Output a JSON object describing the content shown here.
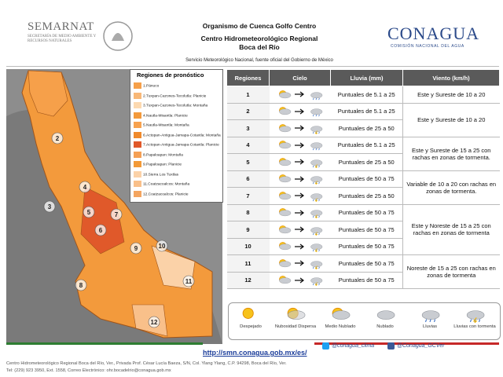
{
  "header": {
    "semarnat": "SEMARNAT",
    "semarnat_sub": "SECRETARÍA DE MEDIO AMBIENTE Y RECURSOS NATURALES",
    "org_lines": [
      "Organismo de Cuenca Golfo Centro",
      "Centro Hidrometeorológico Regional",
      "Boca del Río"
    ],
    "smn": "Servicio Meteorológico Nacional, fuente oficial del Gobierno de México",
    "conagua": "CONAGUA",
    "conagua_sub": "COMISIÓN NACIONAL DEL AGUA"
  },
  "map": {
    "legend_title": "Regiones de pronóstico",
    "legend": [
      {
        "label": "1.Pánuco",
        "color": "#f6a04a"
      },
      {
        "label": "2.Tuxpan-Cazones-Tecolutla: Planicie",
        "color": "#f8b878"
      },
      {
        "label": "3.Tuxpan-Cazones-Tecolutla: Montaña",
        "color": "#fcd9b0"
      },
      {
        "label": "4.Nautla-Misantla: Planicie",
        "color": "#f39a3c"
      },
      {
        "label": "5.Nautla-Misantla: Montaña",
        "color": "#f7a24f"
      },
      {
        "label": "6.Actopan-Antigua-Jamapa-Cotaxtla: Montaña",
        "color": "#f08a2c"
      },
      {
        "label": "7.Actopan-Antigua-Jamapa-Cotaxtla: Planicie",
        "color": "#e0592a"
      },
      {
        "label": "8.Papaloapan: Montaña",
        "color": "#f5a055"
      },
      {
        "label": "9.Papaloapan: Planicie",
        "color": "#f39a38"
      },
      {
        "label": "10.Sierra Los Tuxtlas",
        "color": "#fbd2a8"
      },
      {
        "label": "11.Coatzacoalcos: Montaña",
        "color": "#f9c08a"
      },
      {
        "label": "12.Coatzacoalcos: Planicie",
        "color": "#f4a560"
      }
    ],
    "labels": [
      "2",
      "3",
      "4",
      "5",
      "6",
      "7",
      "8",
      "9",
      "10",
      "11",
      "12"
    ]
  },
  "table": {
    "headers": [
      "Regiones",
      "Cielo",
      "Lluvia (mm)",
      "Viento (km/h)"
    ],
    "rows": [
      {
        "region": "1",
        "lluvia": "Puntuales de 5.1 a 25",
        "viento": "Este y Sureste de 10 a 20"
      },
      {
        "region": "2",
        "lluvia": "Puntuales de 5.1 a 25",
        "viento": "Este y Sureste de 10 a 20"
      },
      {
        "region": "3",
        "lluvia": "Puntuales de 25 a 50",
        "viento": null
      },
      {
        "region": "4",
        "lluvia": "Puntuales de 5.1 a 25",
        "viento": "Este y Sureste de 15 a 25 con rachas en zonas de tormenta."
      },
      {
        "region": "5",
        "lluvia": "Puntuales de 25 a 50",
        "viento": null
      },
      {
        "region": "6",
        "lluvia": "Puntuales de 50 a 75",
        "viento": "Variable de 10 a 20 con rachas en zonas de tormenta."
      },
      {
        "region": "7",
        "lluvia": "Puntuales de 25 a 50",
        "viento": null
      },
      {
        "region": "8",
        "lluvia": "Puntuales de 50 a 75",
        "viento": "Este y Noreste de 15 a 25 con rachas en zonas de tormenta"
      },
      {
        "region": "9",
        "lluvia": "Puntuales de 50 a 75",
        "viento": null
      },
      {
        "region": "10",
        "lluvia": "Puntuales de 50 a 75",
        "viento": null
      },
      {
        "region": "11",
        "lluvia": "Puntuales de 50 a 75",
        "viento": "Noreste de 15 a 25 con rachas en zonas de tormenta"
      },
      {
        "region": "12",
        "lluvia": "Puntuales de 50 a 75",
        "viento": null
      }
    ]
  },
  "sky_legend": [
    "Despejado",
    "Nubosidad Dispersa",
    "Medio Nublado",
    "Nublado",
    "Lluvias",
    "Lluvias con tormenta"
  ],
  "footer": {
    "url": "http://smn.conagua.gob.mx/es/",
    "twitter": "@conagua_clima",
    "facebook": "@Conagua_GCVer",
    "address": "Centro Hidrometeorológico Regional Boca del Río, Ver., Privada Prof. César Lucía Baeza, S/N, Col. Ylang Ylang, C.P. 94298, Boca del Río, Ver.",
    "contact": "Tel: (229) 923 3950, Ext. 1558, Correo Electrónico: ohr.bocadelrio@conagua.gob.mx"
  }
}
